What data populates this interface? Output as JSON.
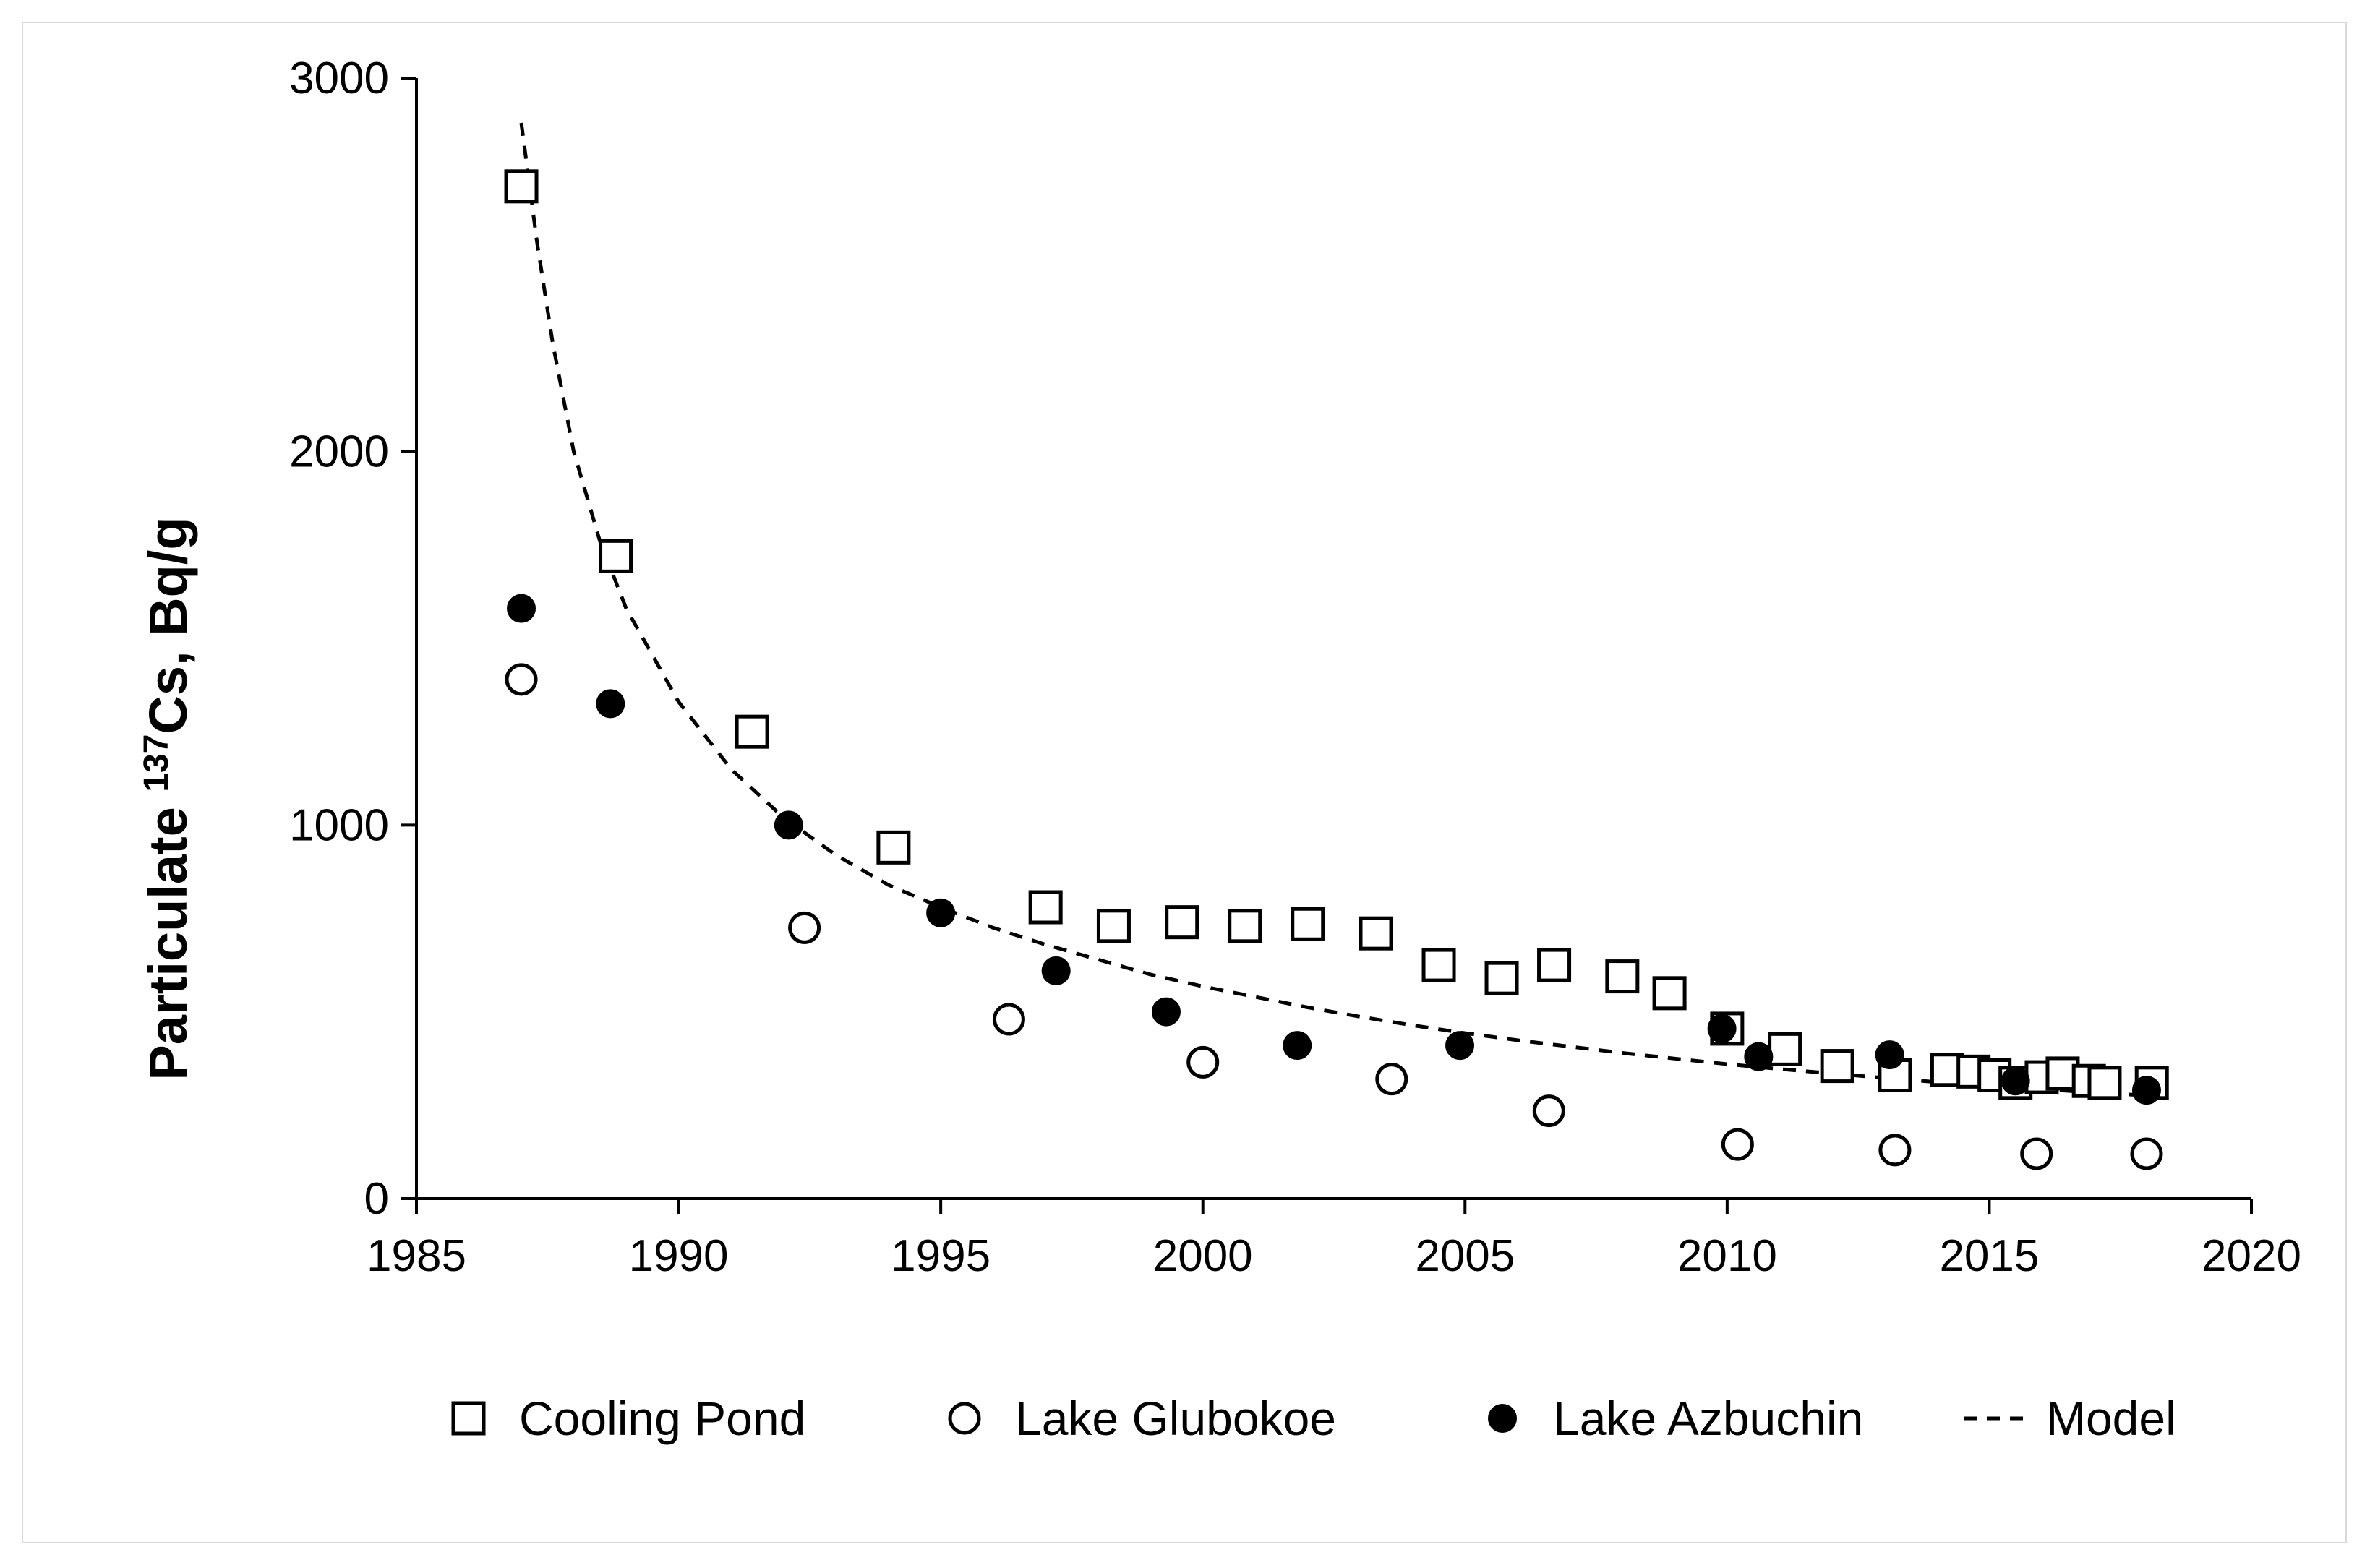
{
  "chart_data": {
    "type": "scatter",
    "ylabel": {
      "prefix": "Particulate ",
      "superscript": "137",
      "suffix": "Cs, Bq/g"
    },
    "xlabel": "",
    "xlim": [
      1985,
      2020
    ],
    "ylim": [
      0,
      3000
    ],
    "xticks": [
      "1985",
      "1990",
      "1995",
      "2000",
      "2005",
      "2010",
      "2015",
      "2020"
    ],
    "yticks": [
      "0",
      "1000",
      "2000",
      "3000"
    ],
    "grid": false,
    "legend_position": "bottom",
    "series": [
      {
        "name": "Cooling Pond",
        "marker": "open-square",
        "points": [
          [
            1987.0,
            2710
          ],
          [
            1988.8,
            1720
          ],
          [
            1991.4,
            1250
          ],
          [
            1994.1,
            940
          ],
          [
            1997.0,
            780
          ],
          [
            1998.3,
            730
          ],
          [
            1999.6,
            740
          ],
          [
            2000.8,
            730
          ],
          [
            2002.0,
            735
          ],
          [
            2003.3,
            710
          ],
          [
            2004.5,
            625
          ],
          [
            2005.7,
            590
          ],
          [
            2006.7,
            625
          ],
          [
            2008.0,
            595
          ],
          [
            2008.9,
            550
          ],
          [
            2010.0,
            455
          ],
          [
            2011.1,
            400
          ],
          [
            2012.1,
            355
          ],
          [
            2013.2,
            330
          ],
          [
            2014.2,
            345
          ],
          [
            2014.7,
            340
          ],
          [
            2015.1,
            330
          ],
          [
            2015.5,
            310
          ],
          [
            2016.0,
            325
          ],
          [
            2016.4,
            335
          ],
          [
            2016.9,
            315
          ],
          [
            2017.2,
            310
          ],
          [
            2018.1,
            310
          ]
        ]
      },
      {
        "name": "Lake Glubokoe",
        "marker": "open-circle",
        "points": [
          [
            1987.0,
            1390
          ],
          [
            1992.4,
            725
          ],
          [
            1996.3,
            480
          ],
          [
            2000.0,
            365
          ],
          [
            2003.6,
            320
          ],
          [
            2006.6,
            235
          ],
          [
            2010.2,
            145
          ],
          [
            2013.2,
            130
          ],
          [
            2015.9,
            120
          ],
          [
            2018.0,
            120
          ]
        ]
      },
      {
        "name": "Lake Azbuchin",
        "marker": "filled-circle",
        "points": [
          [
            1987.0,
            1580
          ],
          [
            1988.7,
            1325
          ],
          [
            1992.1,
            1000
          ],
          [
            1995.0,
            765
          ],
          [
            1997.2,
            610
          ],
          [
            1999.3,
            500
          ],
          [
            2001.8,
            410
          ],
          [
            2004.9,
            410
          ],
          [
            2009.9,
            455
          ],
          [
            2010.6,
            380
          ],
          [
            2013.1,
            385
          ],
          [
            2015.5,
            315
          ],
          [
            2018.0,
            290
          ]
        ]
      },
      {
        "name": "Model",
        "marker": "dashed-line",
        "curve": [
          [
            1987.0,
            2880
          ],
          [
            1987.3,
            2560
          ],
          [
            1987.6,
            2290
          ],
          [
            1988.0,
            2000
          ],
          [
            1988.5,
            1760
          ],
          [
            1989.0,
            1580
          ],
          [
            1990.0,
            1330
          ],
          [
            1991.0,
            1150
          ],
          [
            1992.0,
            1020
          ],
          [
            1993.0,
            920
          ],
          [
            1994.0,
            840
          ],
          [
            1995.0,
            780
          ],
          [
            1996.0,
            725
          ],
          [
            1997.0,
            680
          ],
          [
            1998.0,
            640
          ],
          [
            1999.0,
            600
          ],
          [
            2000.0,
            568
          ],
          [
            2001.0,
            540
          ],
          [
            2002.0,
            512
          ],
          [
            2003.0,
            487
          ],
          [
            2004.0,
            464
          ],
          [
            2005.0,
            443
          ],
          [
            2006.0,
            424
          ],
          [
            2007.0,
            407
          ],
          [
            2008.0,
            390
          ],
          [
            2009.0,
            375
          ],
          [
            2010.0,
            360
          ],
          [
            2011.0,
            347
          ],
          [
            2012.0,
            335
          ],
          [
            2013.0,
            323
          ],
          [
            2014.0,
            312
          ],
          [
            2015.0,
            302
          ],
          [
            2016.0,
            293
          ],
          [
            2017.0,
            284
          ],
          [
            2018.0,
            276
          ]
        ]
      }
    ]
  }
}
